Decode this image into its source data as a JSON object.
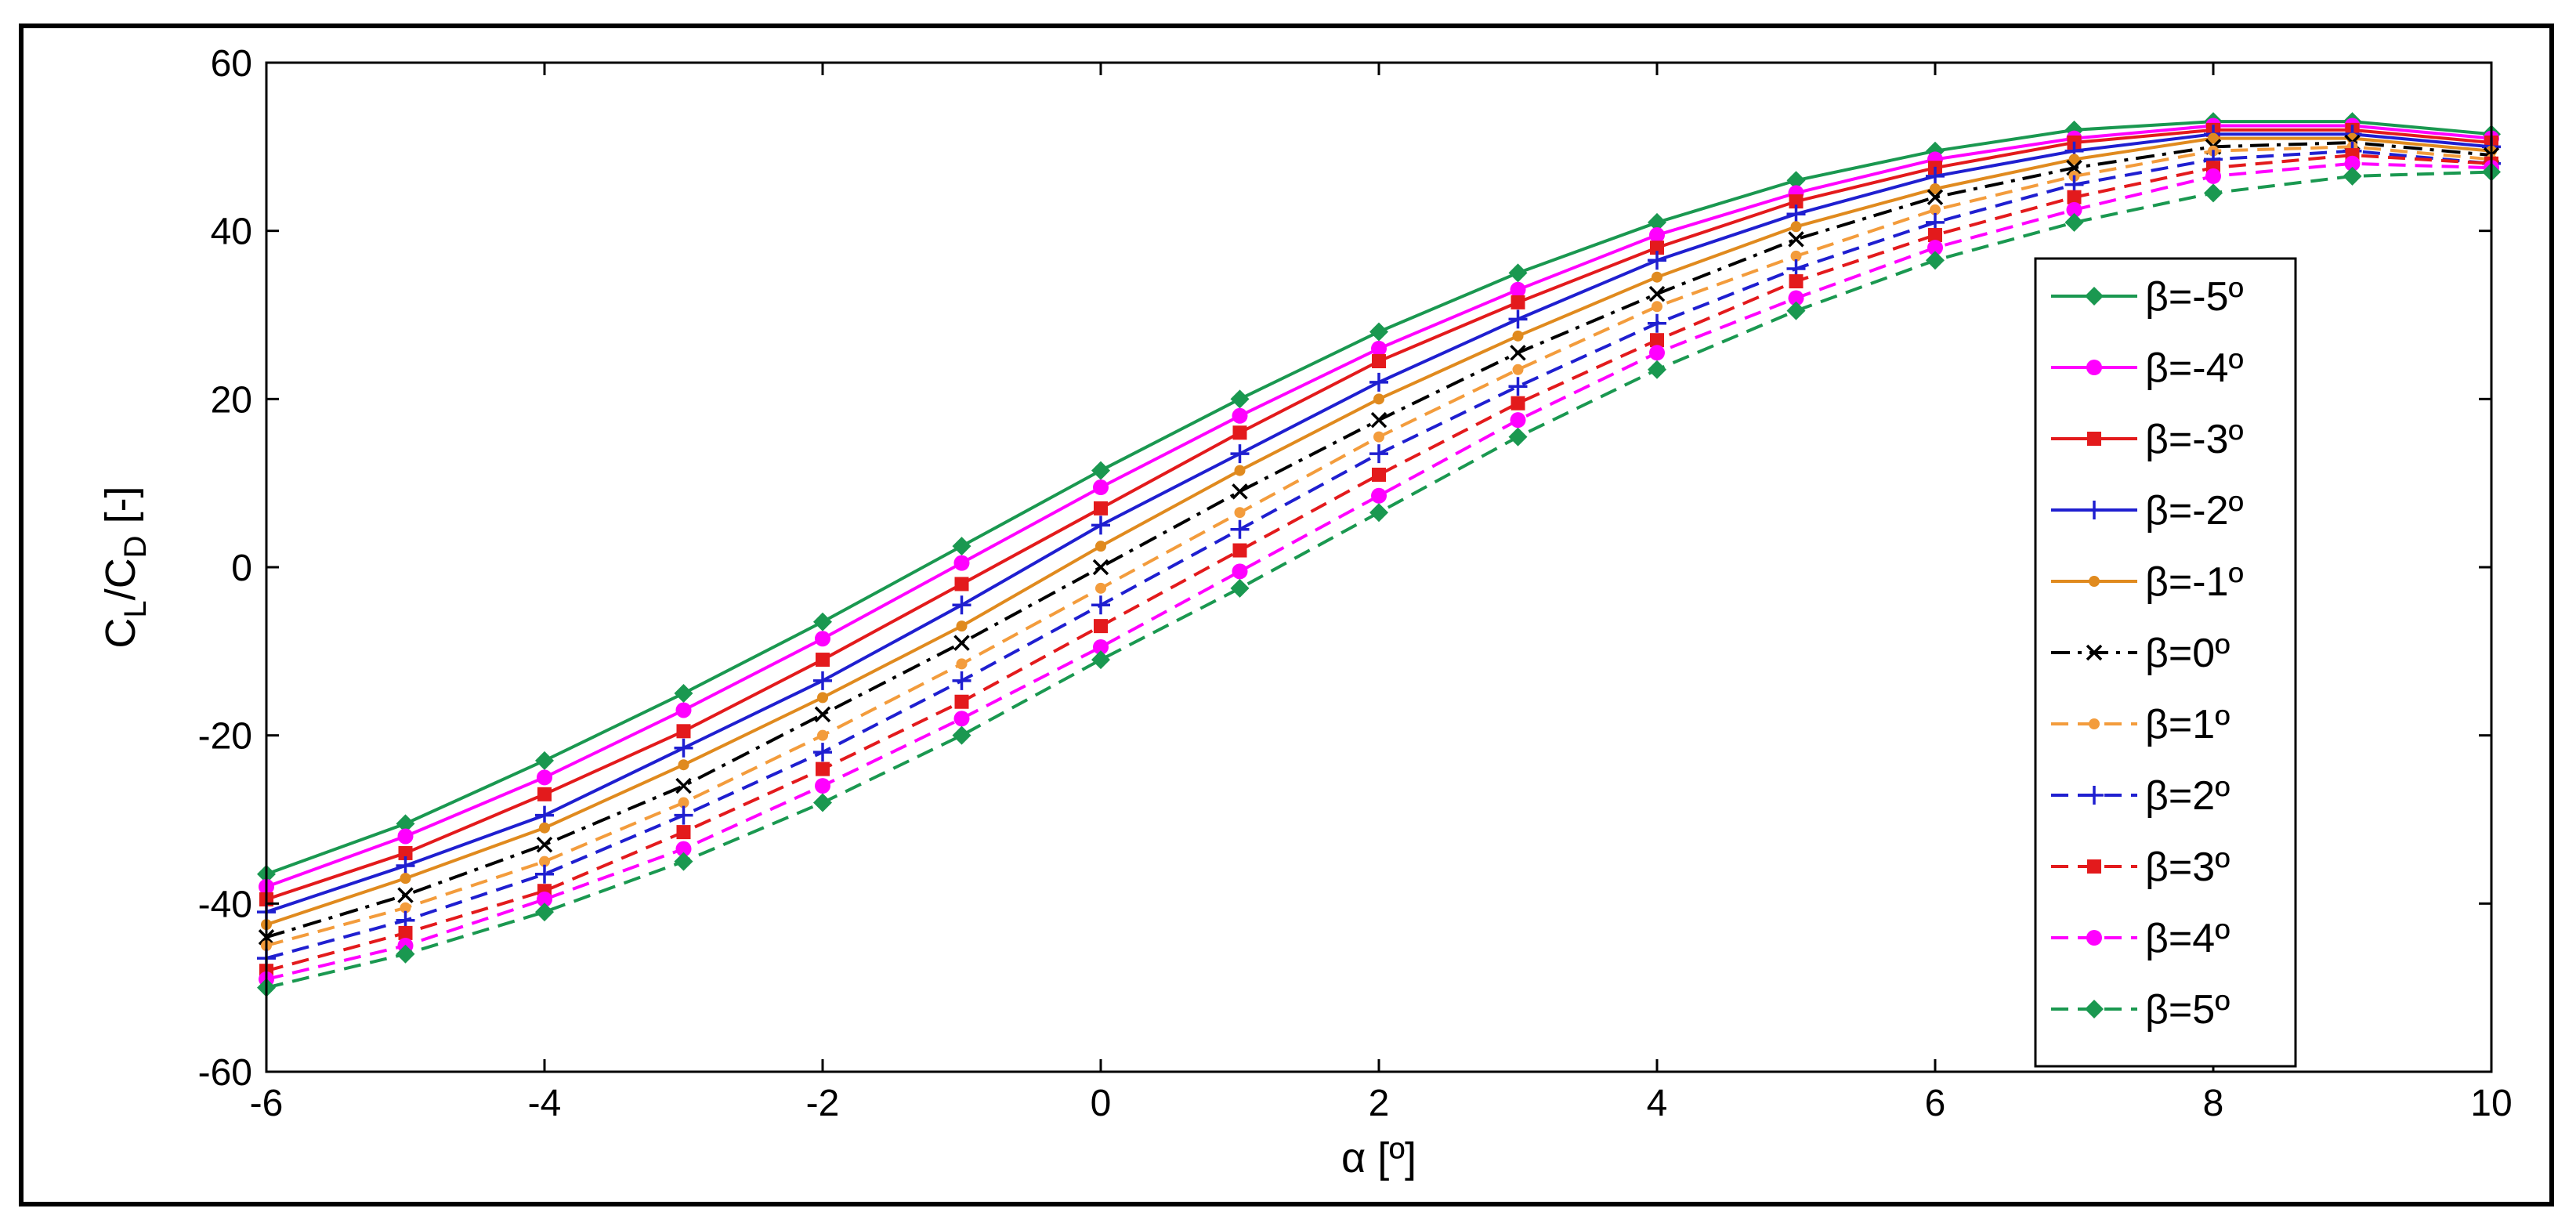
{
  "chart_data": {
    "type": "line",
    "xlabel": "α [º]",
    "ylabel": {
      "main1": "C",
      "sub1": "L",
      "main2": "/C",
      "sub2": "D",
      "tail": " [-]"
    },
    "xlim": [
      -6,
      10
    ],
    "ylim": [
      -60,
      60
    ],
    "xticks": [
      -6,
      -4,
      -2,
      0,
      2,
      4,
      6,
      8,
      10
    ],
    "yticks": [
      -60,
      -40,
      -20,
      0,
      20,
      40,
      60
    ],
    "grid": false,
    "legend_position": "right",
    "x": [
      -6,
      -5,
      -4,
      -3,
      -2,
      -1,
      0,
      1,
      2,
      3,
      4,
      5,
      6,
      7,
      8,
      9,
      10
    ],
    "series": [
      {
        "name": "β=-5º",
        "color": "#1a9850",
        "dash": "solid",
        "marker": "diamond",
        "values": [
          -36.5,
          -30.5,
          -23,
          -15,
          -6.5,
          2.5,
          11.5,
          20,
          28,
          35,
          41,
          46,
          49.5,
          52,
          53,
          53,
          51.5
        ]
      },
      {
        "name": "β=-4º",
        "color": "#ff00ff",
        "dash": "solid",
        "marker": "circle",
        "values": [
          -38,
          -32,
          -25,
          -17,
          -8.5,
          0.5,
          9.5,
          18,
          26,
          33,
          39.5,
          44.5,
          48.5,
          51,
          52.5,
          52.5,
          51
        ]
      },
      {
        "name": "β=-3º",
        "color": "#e31a1c",
        "dash": "solid",
        "marker": "square",
        "values": [
          -39.5,
          -34,
          -27,
          -19.5,
          -11,
          -2,
          7,
          16,
          24.5,
          31.5,
          38,
          43.5,
          47.5,
          50.5,
          52,
          52,
          50.5
        ]
      },
      {
        "name": "β=-2º",
        "color": "#1f1fd0",
        "dash": "solid",
        "marker": "plus",
        "values": [
          -41,
          -35.5,
          -29.5,
          -21.5,
          -13.5,
          -4.5,
          5,
          13.5,
          22,
          29.5,
          36.5,
          42,
          46.5,
          49.5,
          51.5,
          51.5,
          50
        ]
      },
      {
        "name": "β=-1º",
        "color": "#e08a1e",
        "dash": "solid",
        "marker": "circle-small",
        "values": [
          -42.5,
          -37,
          -31,
          -23.5,
          -15.5,
          -7,
          2.5,
          11.5,
          20,
          27.5,
          34.5,
          40.5,
          45,
          48.5,
          51,
          51,
          49.5
        ]
      },
      {
        "name": "β=0º",
        "color": "#000000",
        "dash": "dashdot",
        "marker": "x",
        "values": [
          -44,
          -39,
          -33,
          -26,
          -17.5,
          -9,
          0,
          9,
          17.5,
          25.5,
          32.5,
          39,
          44,
          47.5,
          50,
          50.5,
          49
        ]
      },
      {
        "name": "β=1º",
        "color": "#f39c3c",
        "dash": "dashed",
        "marker": "circle-small",
        "values": [
          -45,
          -40.5,
          -35,
          -28,
          -20,
          -11.5,
          -2.5,
          6.5,
          15.5,
          23.5,
          31,
          37,
          42.5,
          46.5,
          49.5,
          50,
          48.5
        ]
      },
      {
        "name": "β=2º",
        "color": "#1f1fd0",
        "dash": "dashed",
        "marker": "plus",
        "values": [
          -46.5,
          -42,
          -36.5,
          -29.5,
          -22,
          -13.5,
          -4.5,
          4.5,
          13.5,
          21.5,
          29,
          35.5,
          41,
          45.5,
          48.5,
          49.5,
          48
        ]
      },
      {
        "name": "β=3º",
        "color": "#e31a1c",
        "dash": "dashed",
        "marker": "square",
        "values": [
          -48,
          -43.5,
          -38.5,
          -31.5,
          -24,
          -16,
          -7,
          2,
          11,
          19.5,
          27,
          34,
          39.5,
          44,
          47.5,
          49,
          48
        ]
      },
      {
        "name": "β=4º",
        "color": "#ff00ff",
        "dash": "dashed",
        "marker": "circle",
        "values": [
          -49,
          -45,
          -39.5,
          -33.5,
          -26,
          -18,
          -9.5,
          -0.5,
          8.5,
          17.5,
          25.5,
          32,
          38,
          42.5,
          46.5,
          48,
          47.5
        ]
      },
      {
        "name": "β=5º",
        "color": "#1a9850",
        "dash": "dashed",
        "marker": "diamond",
        "values": [
          -50,
          -46,
          -41,
          -35,
          -28,
          -20,
          -11,
          -2.5,
          6.5,
          15.5,
          23.5,
          30.5,
          36.5,
          41,
          44.5,
          46.5,
          47
        ]
      }
    ]
  }
}
